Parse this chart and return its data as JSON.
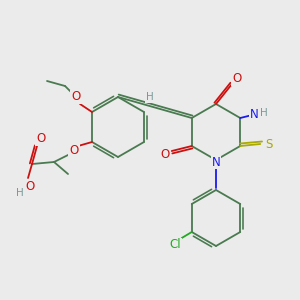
{
  "bg_color": "#ebebeb",
  "C": "#4a7a50",
  "N": "#1a1aee",
  "O": "#cc1111",
  "S": "#aaaa00",
  "Cl": "#22aa22",
  "H": "#7a9a9a",
  "lw": 1.3,
  "fs": 7.5
}
